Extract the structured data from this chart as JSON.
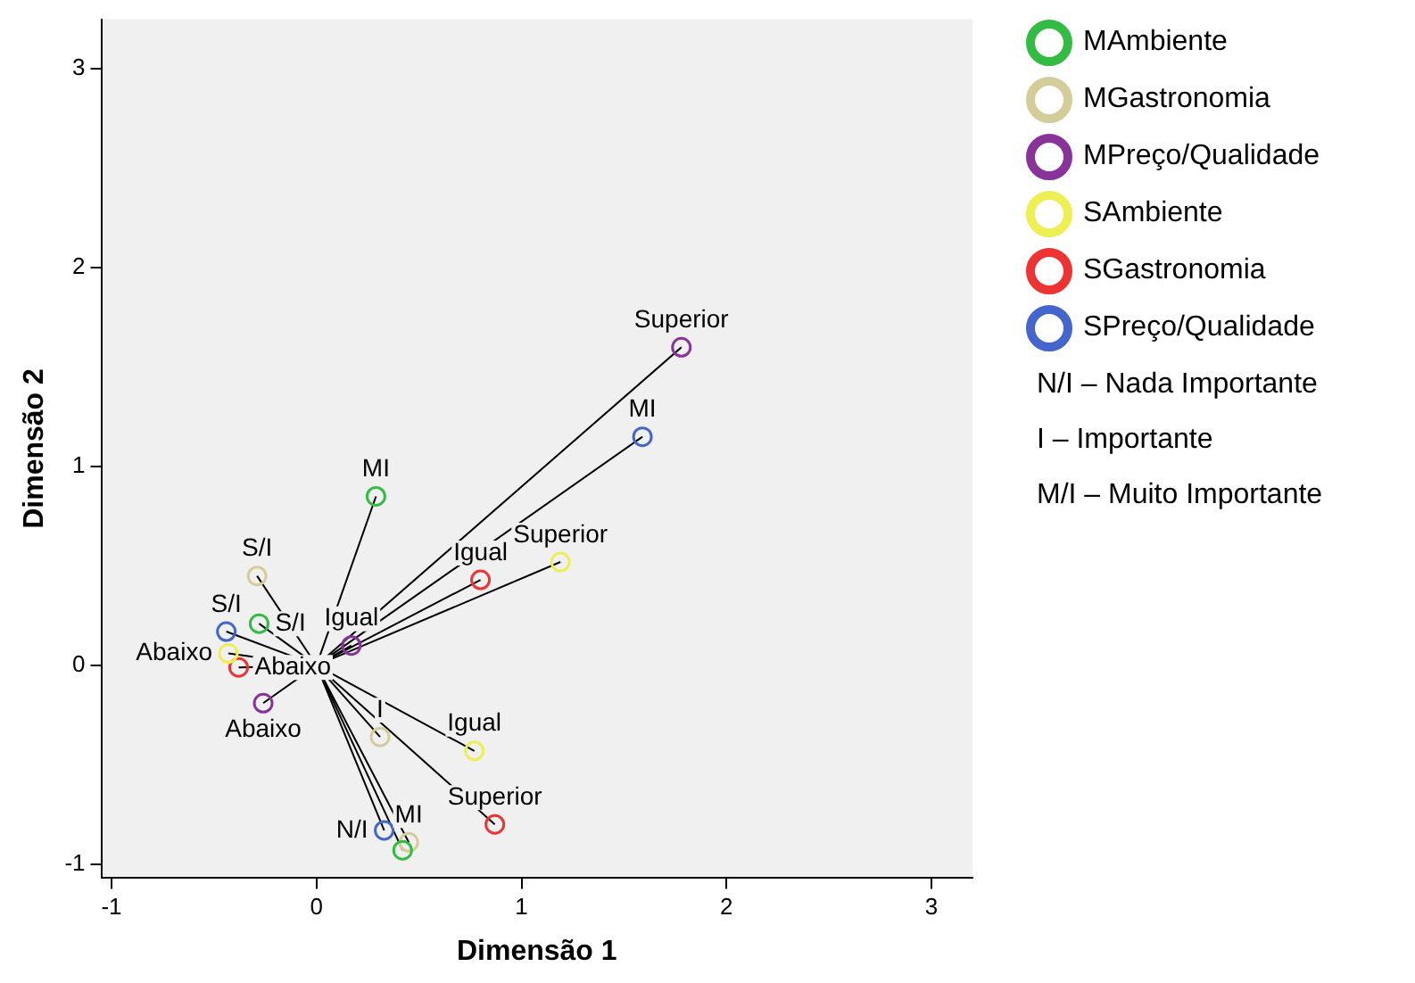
{
  "chart_data": {
    "type": "scatter",
    "xlabel": "Dimensão 1",
    "ylabel": "Dimensão 2",
    "xlim": [
      -1.05,
      3.2
    ],
    "ylim": [
      -1.07,
      3.25
    ],
    "xticks": [
      -1,
      0,
      1,
      2,
      3
    ],
    "yticks": [
      -1,
      0,
      1,
      2,
      3
    ],
    "marker": "circle",
    "legend": "right",
    "series": [
      {
        "name": "MAmbiente",
        "color": "#33bb44",
        "x": [
          0.29,
          -0.28,
          0.42
        ],
        "values": [
          0.85,
          0.21,
          -0.93
        ]
      },
      {
        "name": "MGastronomia",
        "color": "#d4cc99",
        "x": [
          -0.29,
          0.31,
          0.45
        ],
        "values": [
          0.45,
          -0.36,
          -0.89
        ]
      },
      {
        "name": "MPreço/Qualidade",
        "color": "#883399",
        "x": [
          1.78,
          0.17,
          -0.26
        ],
        "values": [
          1.6,
          0.1,
          -0.19
        ]
      },
      {
        "name": "SAmbiente",
        "color": "#eeee55",
        "x": [
          1.19,
          0.77,
          -0.43
        ],
        "values": [
          0.52,
          -0.43,
          0.06
        ]
      },
      {
        "name": "SGastronomia",
        "color": "#ee3333",
        "x": [
          0.8,
          0.87,
          -0.38
        ],
        "values": [
          0.43,
          -0.8,
          -0.01
        ]
      },
      {
        "name": "SPreço/Qualidade",
        "color": "#4466cc",
        "x": [
          1.59,
          -0.44,
          0.33
        ],
        "values": [
          1.15,
          0.17,
          -0.83
        ]
      }
    ],
    "annotations": [
      {
        "text": "MI",
        "x": 0.29,
        "y": 0.85
      },
      {
        "text": "S/I",
        "x": -0.28,
        "y": 0.21
      },
      {
        "text": "S/I",
        "x": -0.29,
        "y": 0.45
      },
      {
        "text": "I",
        "x": 0.31,
        "y": -0.36
      },
      {
        "text": "MI",
        "x": 0.45,
        "y": -0.89
      },
      {
        "text": "Superior",
        "x": 1.78,
        "y": 1.6
      },
      {
        "text": "Igual",
        "x": 0.17,
        "y": 0.1
      },
      {
        "text": "Abaixo",
        "x": -0.26,
        "y": -0.19
      },
      {
        "text": "Superior",
        "x": 1.19,
        "y": 0.52
      },
      {
        "text": "Igual",
        "x": 0.77,
        "y": -0.43
      },
      {
        "text": "Abaixo",
        "x": -0.43,
        "y": 0.06
      },
      {
        "text": "Igual",
        "x": 0.8,
        "y": 0.43
      },
      {
        "text": "Superior",
        "x": 0.87,
        "y": -0.8
      },
      {
        "text": "Abaixo",
        "x": -0.38,
        "y": -0.01
      },
      {
        "text": "MI",
        "x": 1.59,
        "y": 1.15
      },
      {
        "text": "S/I",
        "x": -0.44,
        "y": 0.17
      },
      {
        "text": "N/I",
        "x": 0.33,
        "y": -0.83
      },
      "N/I  –  Nada Importante",
      "I  –  Importante",
      "M/I  –  Muito Importante"
    ]
  }
}
